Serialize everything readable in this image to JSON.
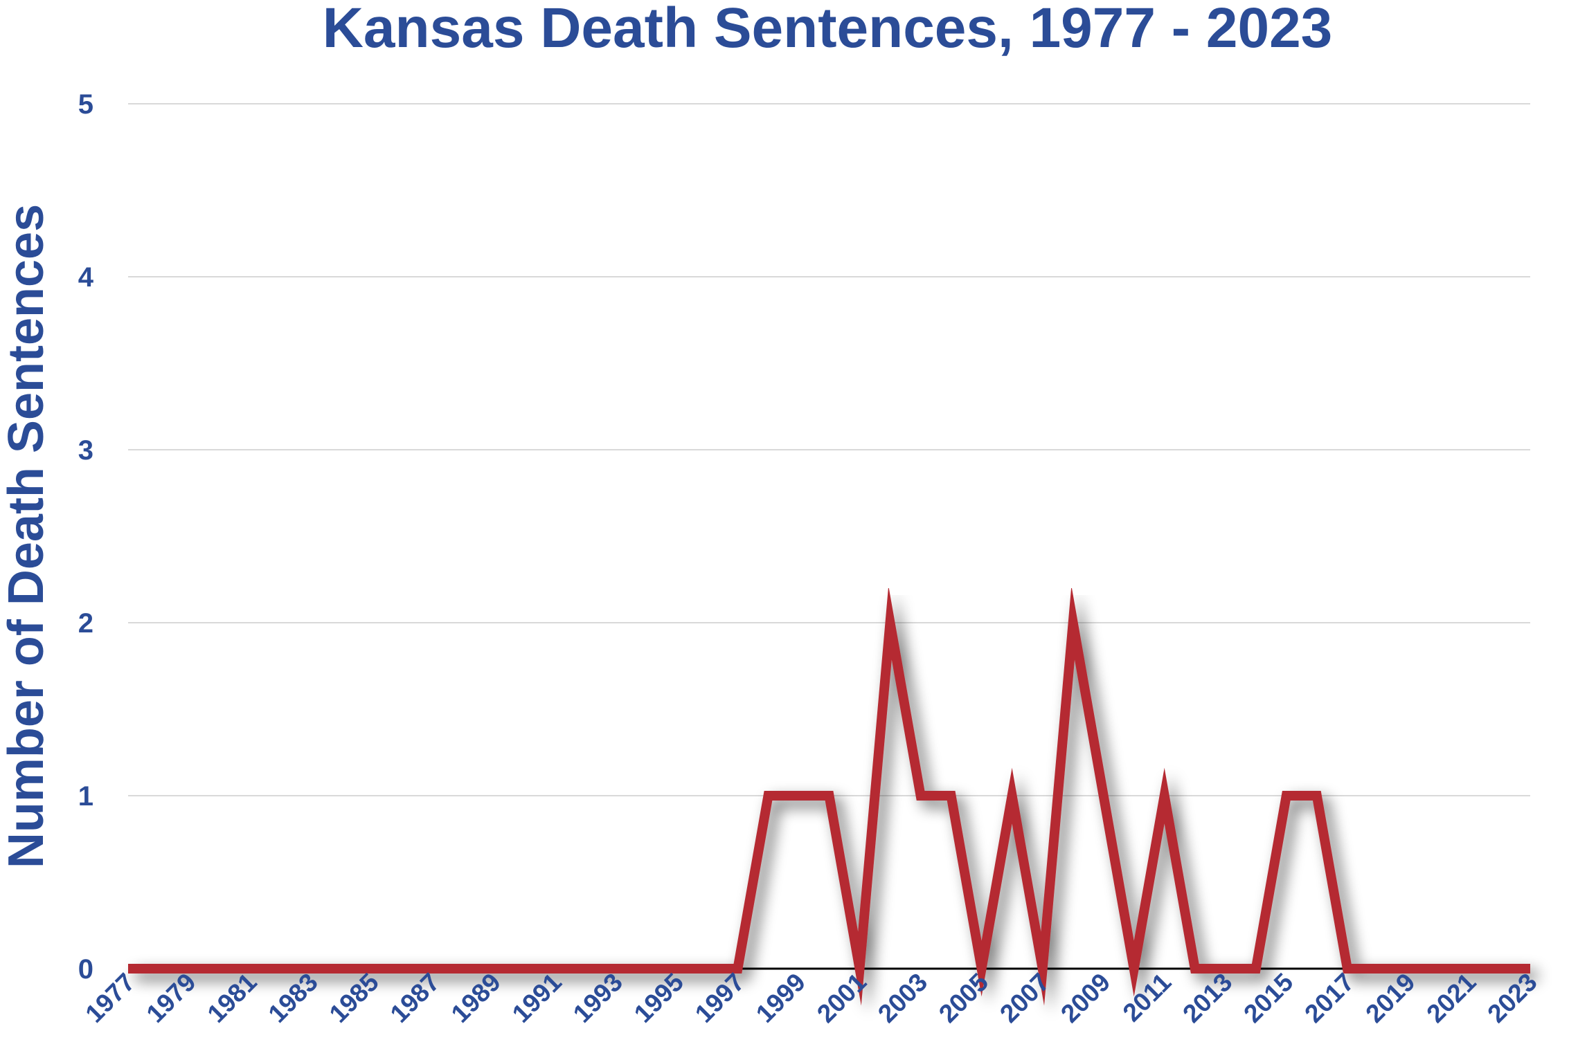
{
  "chart_data": {
    "type": "line",
    "title": "Kansas Death Sentences, 1977 - 2023",
    "ylabel": "Number of Death Sentences",
    "xlabel": "",
    "x": [
      1977,
      1978,
      1979,
      1980,
      1981,
      1982,
      1983,
      1984,
      1985,
      1986,
      1987,
      1988,
      1989,
      1990,
      1991,
      1992,
      1993,
      1994,
      1995,
      1996,
      1997,
      1998,
      1999,
      2000,
      2001,
      2002,
      2003,
      2004,
      2005,
      2006,
      2007,
      2008,
      2009,
      2010,
      2011,
      2012,
      2013,
      2014,
      2015,
      2016,
      2017,
      2018,
      2019,
      2020,
      2021,
      2022,
      2023
    ],
    "series": [
      {
        "values": [
          0,
          0,
          0,
          0,
          0,
          0,
          0,
          0,
          0,
          0,
          0,
          0,
          0,
          0,
          0,
          0,
          0,
          0,
          0,
          0,
          0,
          1,
          1,
          1,
          0,
          2,
          1,
          1,
          0,
          1,
          0,
          2,
          1,
          0,
          1,
          0,
          0,
          0,
          1,
          1,
          0,
          0,
          0,
          0,
          0,
          0,
          0
        ],
        "color": "#b52b32"
      }
    ],
    "x_tick_labels": [
      "1977",
      "1979",
      "1981",
      "1983",
      "1985",
      "1987",
      "1989",
      "1991",
      "1993",
      "1995",
      "1997",
      "1999",
      "2001",
      "2003",
      "2005",
      "2007",
      "2009",
      "2011",
      "2013",
      "2015",
      "2017",
      "2019",
      "2021",
      "2023"
    ],
    "y_ticks": [
      0,
      1,
      2,
      3,
      4,
      5
    ],
    "ylim": [
      0,
      5
    ],
    "xlim": [
      1977,
      2023
    ],
    "grid": true,
    "legend": "none",
    "colors": {
      "text": "#2b4c97",
      "line": "#b52b32",
      "grid": "#d9d9d9",
      "axis": "#000000"
    }
  }
}
